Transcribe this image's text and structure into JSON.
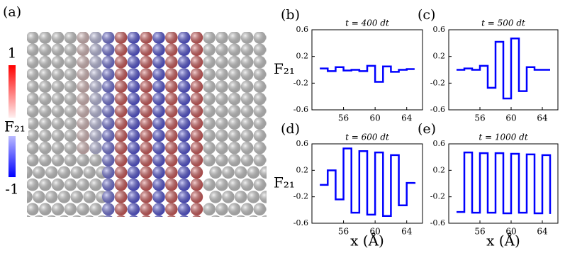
{
  "chart_data": [
    {
      "type": "image",
      "label": "(a)",
      "colorbar_label": "F₂₁",
      "colorbar_ticks": [
        1,
        -1
      ],
      "colorbar_colors": [
        "#ff0000",
        "#ffffff",
        "#0000ff"
      ]
    },
    {
      "type": "step",
      "label": "(b)",
      "title": "t = 400 dt",
      "ylabel": "F₂₁",
      "color": "#0000ff",
      "x": [
        53,
        54,
        55,
        56,
        57,
        58,
        59,
        60,
        61,
        62,
        63,
        64,
        65
      ],
      "values": [
        0.02,
        -0.02,
        0.04,
        -0.01,
        0.0,
        -0.02,
        0.06,
        -0.18,
        0.05,
        -0.03,
        0.0,
        0.01,
        0.01
      ],
      "xlim": [
        52,
        66
      ],
      "ylim": [
        -0.6,
        0.6
      ],
      "xticks": [
        56,
        60,
        64
      ],
      "yticks": [
        0.6,
        0.2,
        -0.2,
        -0.6
      ]
    },
    {
      "type": "step",
      "label": "(c)",
      "title": "t = 500 dt",
      "color": "#0000ff",
      "x": [
        53,
        54,
        55,
        56,
        57,
        58,
        59,
        60,
        61,
        62,
        63,
        64,
        65
      ],
      "values": [
        0.0,
        0.02,
        0.0,
        0.06,
        -0.27,
        0.42,
        -0.43,
        0.47,
        -0.32,
        0.04,
        0.0,
        0.0,
        0.0
      ],
      "xlim": [
        52,
        66
      ],
      "ylim": [
        -0.6,
        0.6
      ],
      "xticks": [
        56,
        60,
        64
      ],
      "yticks": [
        0.6,
        0.2,
        -0.2,
        -0.6
      ]
    },
    {
      "type": "step",
      "label": "(d)",
      "title": "t = 600 dt",
      "ylabel": "F₂₁",
      "xlabel": "x (Å)",
      "color": "#0000ff",
      "x": [
        53,
        54,
        55,
        56,
        57,
        58,
        59,
        60,
        61,
        62,
        63,
        64,
        65
      ],
      "values": [
        -0.02,
        0.2,
        -0.24,
        0.53,
        -0.44,
        0.49,
        -0.47,
        0.47,
        -0.49,
        0.43,
        -0.33,
        0.01,
        0.02
      ],
      "xlim": [
        52,
        66
      ],
      "ylim": [
        -0.6,
        0.6
      ],
      "xticks": [
        56,
        60,
        64
      ],
      "yticks": [
        0.6,
        0.2,
        -0.2,
        -0.6
      ]
    },
    {
      "type": "step",
      "label": "(e)",
      "title": "t = 1000 dt",
      "xlabel": "x (Å)",
      "color": "#0000ff",
      "x": [
        53,
        54,
        55,
        56,
        57,
        58,
        59,
        60,
        61,
        62,
        63,
        64,
        65
      ],
      "values": [
        -0.43,
        0.47,
        -0.44,
        0.46,
        -0.44,
        0.46,
        -0.45,
        0.45,
        -0.44,
        0.44,
        -0.45,
        0.43,
        -0.46
      ],
      "xlim": [
        52,
        66
      ],
      "ylim": [
        -0.6,
        0.6
      ],
      "xticks": [
        56,
        60,
        64
      ],
      "yticks": [
        0.6,
        0.2,
        -0.2,
        -0.6
      ]
    }
  ]
}
